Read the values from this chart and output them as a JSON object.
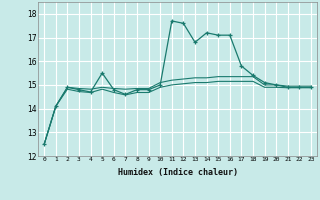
{
  "xlabel": "Humidex (Indice chaleur)",
  "bg_color": "#c8eae8",
  "grid_color": "#ffffff",
  "line_color": "#1a7a6e",
  "xlim": [
    -0.5,
    23.5
  ],
  "ylim": [
    12,
    18.5
  ],
  "yticks": [
    12,
    13,
    14,
    15,
    16,
    17,
    18
  ],
  "xticks": [
    0,
    1,
    2,
    3,
    4,
    5,
    6,
    7,
    8,
    9,
    10,
    11,
    12,
    13,
    14,
    15,
    16,
    17,
    18,
    19,
    20,
    21,
    22,
    23
  ],
  "xtick_labels": [
    "0",
    "1",
    "2",
    "3",
    "4",
    "5",
    "6",
    "7",
    "8",
    "9",
    "10",
    "11",
    "12",
    "13",
    "14",
    "15",
    "16",
    "17",
    "18",
    "19",
    "20",
    "21",
    "22",
    "23"
  ],
  "series": [
    [
      12.5,
      14.1,
      14.9,
      14.8,
      14.7,
      15.5,
      14.8,
      14.6,
      14.8,
      14.8,
      15.0,
      17.7,
      17.6,
      16.8,
      17.2,
      17.1,
      17.1,
      15.8,
      15.4,
      15.1,
      15.0,
      14.9,
      14.9,
      14.9
    ],
    [
      12.5,
      14.1,
      14.9,
      14.85,
      14.82,
      14.9,
      14.85,
      14.82,
      14.85,
      14.85,
      15.1,
      15.2,
      15.25,
      15.3,
      15.3,
      15.35,
      15.35,
      15.35,
      15.35,
      15.0,
      15.0,
      14.95,
      14.95,
      14.95
    ],
    [
      12.5,
      14.1,
      14.82,
      14.72,
      14.68,
      14.82,
      14.68,
      14.58,
      14.68,
      14.68,
      14.9,
      15.0,
      15.05,
      15.1,
      15.1,
      15.15,
      15.15,
      15.15,
      15.15,
      14.9,
      14.9,
      14.88,
      14.88,
      14.88
    ]
  ]
}
